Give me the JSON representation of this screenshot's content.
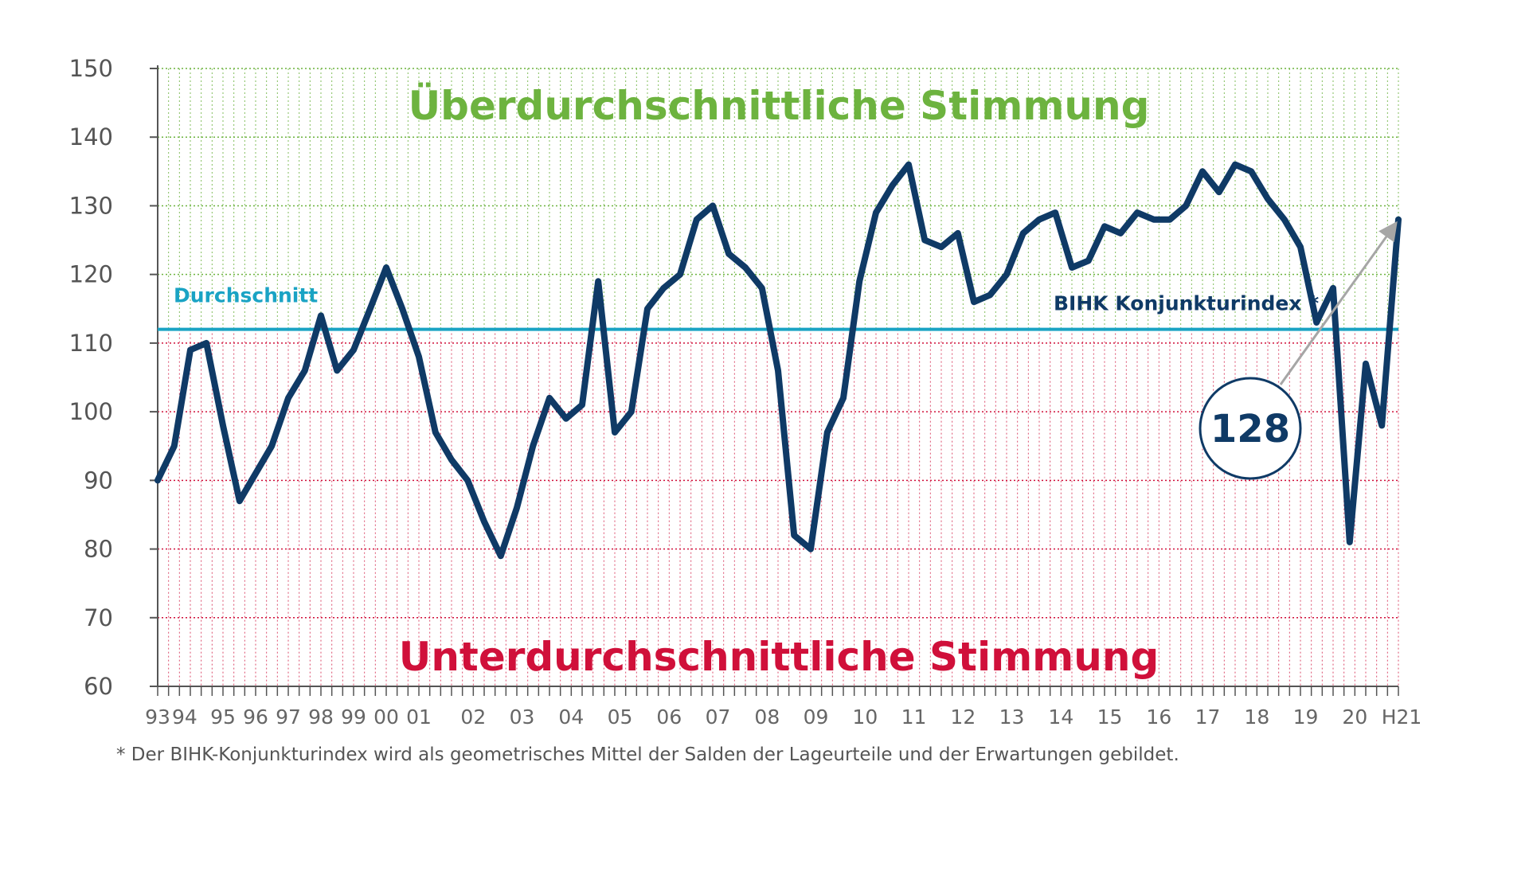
{
  "chart_data": {
    "type": "line",
    "title": "",
    "xlabel": "",
    "ylabel": "",
    "ylim": [
      60,
      150
    ],
    "yticks": [
      60,
      70,
      80,
      90,
      100,
      110,
      120,
      130,
      140,
      150
    ],
    "xlim": [
      1993.0,
      2021.5
    ],
    "x_tick_labels": [
      {
        "label": "93",
        "x": 1993.0
      },
      {
        "label": "94",
        "x": 1993.62
      },
      {
        "label": "95",
        "x": 1994.5
      },
      {
        "label": "96",
        "x": 1995.25
      },
      {
        "label": "97",
        "x": 1996.0
      },
      {
        "label": "98",
        "x": 1996.75
      },
      {
        "label": "99",
        "x": 1997.5
      },
      {
        "label": "00",
        "x": 1998.25
      },
      {
        "label": "01",
        "x": 1999.0
      },
      {
        "label": "02",
        "x": 2000.25
      },
      {
        "label": "03",
        "x": 2001.37
      },
      {
        "label": "04",
        "x": 2002.5
      },
      {
        "label": "05",
        "x": 2003.62
      },
      {
        "label": "06",
        "x": 2004.75
      },
      {
        "label": "07",
        "x": 2005.87
      },
      {
        "label": "08",
        "x": 2007.0
      },
      {
        "label": "09",
        "x": 2008.12
      },
      {
        "label": "10",
        "x": 2009.25
      },
      {
        "label": "11",
        "x": 2010.37
      },
      {
        "label": "12",
        "x": 2011.5
      },
      {
        "label": "13",
        "x": 2012.62
      },
      {
        "label": "14",
        "x": 2013.75
      },
      {
        "label": "15",
        "x": 2014.87
      },
      {
        "label": "16",
        "x": 2016.0
      },
      {
        "label": "17",
        "x": 2017.12
      },
      {
        "label": "18",
        "x": 2018.25
      },
      {
        "label": "19",
        "x": 2019.37
      },
      {
        "label": "20",
        "x": 2020.5
      },
      {
        "label": "H21",
        "x": 2021.5
      }
    ],
    "average": {
      "label": "Durchschnitt",
      "value": 112
    },
    "zone_labels": {
      "above": "Überdurchschnittliche Stimmung",
      "below": "Unterdurchschnittliche Stimmung"
    },
    "grid": true,
    "series": [
      {
        "name": "BIHK Konjunkturindex *",
        "color": "#0f3a66",
        "x": [
          1993.0,
          1993.38,
          1993.75,
          1994.12,
          1994.5,
          1994.88,
          1995.25,
          1995.62,
          1996.0,
          1996.38,
          1996.75,
          1997.12,
          1997.5,
          1997.88,
          1998.25,
          1998.62,
          1999.0,
          1999.38,
          1999.75,
          2000.12,
          2000.5,
          2000.88,
          2001.25,
          2001.62,
          2002.0,
          2002.38,
          2002.75,
          2003.12,
          2003.5,
          2003.88,
          2004.25,
          2004.62,
          2005.0,
          2005.38,
          2005.75,
          2006.12,
          2006.5,
          2006.88,
          2007.25,
          2007.62,
          2008.0,
          2008.38,
          2008.75,
          2009.12,
          2009.5,
          2009.88,
          2010.25,
          2010.62,
          2011.0,
          2011.38,
          2011.75,
          2012.12,
          2012.5,
          2012.88,
          2013.25,
          2013.62,
          2014.0,
          2014.38,
          2014.75,
          2015.12,
          2015.5,
          2015.88,
          2016.25,
          2016.62,
          2017.0,
          2017.38,
          2017.75,
          2018.12,
          2018.5,
          2018.88,
          2019.25,
          2019.62,
          2020.0,
          2020.38,
          2020.75,
          2021.12,
          2021.5
        ],
        "values": [
          90,
          95,
          109,
          110,
          98,
          87,
          91,
          95,
          102,
          106,
          114,
          106,
          109,
          115,
          121,
          115,
          108,
          97,
          93,
          90,
          84,
          79,
          86,
          95,
          102,
          99,
          101,
          119,
          97,
          100,
          115,
          118,
          120,
          128,
          130,
          123,
          121,
          118,
          106,
          82,
          80,
          97,
          102,
          119,
          129,
          133,
          136,
          125,
          124,
          126,
          116,
          117,
          120,
          126,
          128,
          129,
          121,
          122,
          127,
          126,
          129,
          128,
          128,
          130,
          135,
          132,
          136,
          135,
          131,
          128,
          124,
          113,
          118,
          81,
          107,
          98,
          128
        ]
      }
    ],
    "callout": {
      "value": "128"
    }
  },
  "footnote": "* Der BIHK-Konjunkturindex wird als geometrisches Mittel der Salden der Lageurteile und der Erwartungen gebildet.",
  "colors": {
    "above_zone": "#6db33f",
    "below_zone": "#d0103a",
    "average_line": "#1aa3c4",
    "series": "#0f3a66",
    "arrow": "#a6a6a6",
    "axis": "#555555"
  }
}
